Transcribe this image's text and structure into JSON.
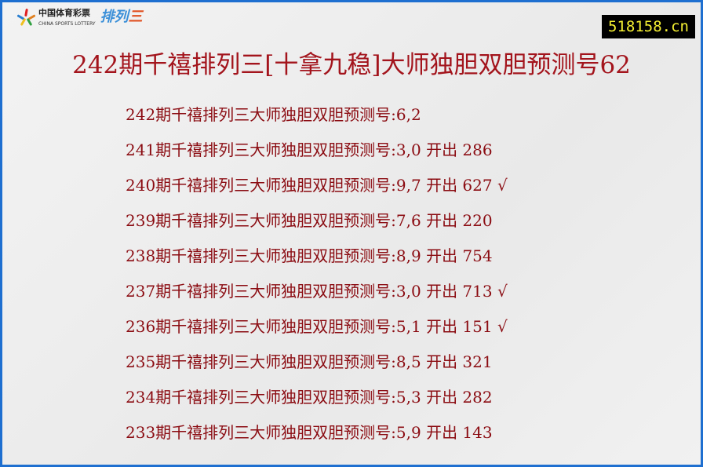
{
  "logo": {
    "cn": "中国体育彩票",
    "en": "CHINA SPORTS LOTTERY",
    "game_a": "排列",
    "game_b": "三"
  },
  "site": "518158.cn",
  "title": "242期千禧排列三[十拿九稳]大师独胆双胆预测号62",
  "rows": [
    "242期千禧排列三大师独胆双胆预测号:6,2",
    "241期千禧排列三大师独胆双胆预测号:3,0 开出 286",
    "240期千禧排列三大师独胆双胆预测号:9,7 开出 627 √",
    "239期千禧排列三大师独胆双胆预测号:7,6 开出 220",
    "238期千禧排列三大师独胆双胆预测号:8,9 开出 754",
    "237期千禧排列三大师独胆双胆预测号:3,0 开出 713 √",
    "236期千禧排列三大师独胆双胆预测号:5,1 开出 151 √",
    "235期千禧排列三大师独胆双胆预测号:8,5 开出 321",
    "234期千禧排列三大师独胆双胆预测号:5,3 开出 282",
    "233期千禧排列三大师独胆双胆预测号:5,9 开出 143"
  ],
  "colors": {
    "border": "#1e6fd0",
    "text": "#8b0c12",
    "title": "#a3141c",
    "badge_bg": "#000000",
    "badge_text": "#f5f032"
  }
}
